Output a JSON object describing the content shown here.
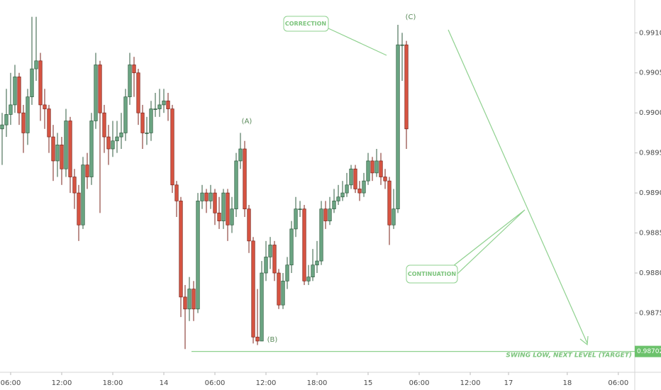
{
  "chart_data": {
    "type": "candlestick",
    "up_color": "#6ba583",
    "down_color": "#d75442",
    "xlim": [
      -1.25,
      73.33
    ],
    "ylim": [
      0.98676,
      0.99141
    ],
    "yticks": [
      {
        "value": 0.991,
        "label": "0.99100"
      },
      {
        "value": 0.9905,
        "label": "0.99050"
      },
      {
        "value": 0.99,
        "label": "0.99000"
      },
      {
        "value": 0.9895,
        "label": "0.98950"
      },
      {
        "value": 0.989,
        "label": "0.98900"
      },
      {
        "value": 0.9885,
        "label": "0.98850"
      },
      {
        "value": 0.988,
        "label": "0.98800"
      },
      {
        "value": 0.9875,
        "label": "0.98750"
      }
    ],
    "xticks": [
      {
        "value": 0,
        "label": "06:00"
      },
      {
        "value": 6,
        "label": "12:00"
      },
      {
        "value": 12,
        "label": "18:00"
      },
      {
        "value": 18,
        "label": "14"
      },
      {
        "value": 24,
        "label": "06:00"
      },
      {
        "value": 30,
        "label": "12:00"
      },
      {
        "value": 36,
        "label": "18:00"
      },
      {
        "value": 42,
        "label": "15"
      },
      {
        "value": 48,
        "label": "06:00"
      },
      {
        "value": 54,
        "label": "12:00"
      },
      {
        "value": 58.5,
        "label": "17"
      },
      {
        "value": 65.4,
        "label": "18"
      },
      {
        "value": 71.4,
        "label": "06:00"
      }
    ],
    "x": [
      -1,
      -0.5,
      0,
      0.5,
      1,
      1.5,
      2,
      2.5,
      3,
      3.5,
      4,
      4.5,
      5,
      5.5,
      6,
      6.5,
      7,
      7.5,
      8,
      8.5,
      9,
      9.5,
      10,
      10.5,
      11,
      11.5,
      12,
      12.5,
      13,
      13.5,
      14,
      14.5,
      15,
      15.5,
      16,
      16.5,
      17,
      17.5,
      18,
      18.5,
      19,
      19.5,
      20,
      20.5,
      21,
      21.5,
      22,
      22.5,
      23,
      23.5,
      24,
      24.5,
      25,
      25.5,
      26,
      26.5,
      27,
      27.5,
      28,
      28.5,
      29,
      29.5,
      30,
      30.5,
      31,
      31.5,
      32,
      32.5,
      33,
      33.5,
      34,
      34.5,
      35,
      35.5,
      36,
      36.5,
      37,
      37.5,
      38,
      38.5,
      39,
      39.5,
      40,
      40.5,
      41,
      41.5,
      42,
      42.5,
      43,
      43.5,
      44,
      44.5,
      45,
      45.5,
      46,
      46.5
    ],
    "open": [
      0.9898,
      0.98985,
      0.98998,
      0.9901,
      0.99045,
      0.99,
      0.98975,
      0.9902,
      0.99055,
      0.99065,
      0.9901,
      0.99005,
      0.9897,
      0.9894,
      0.9896,
      0.9893,
      0.9899,
      0.9892,
      0.989,
      0.9886,
      0.98935,
      0.9892,
      0.9899,
      0.9906,
      0.99,
      0.9897,
      0.98955,
      0.98965,
      0.9897,
      0.98975,
      0.9902,
      0.9906,
      0.9905,
      0.99,
      0.98975,
      0.98975,
      0.99005,
      0.99005,
      0.9901,
      0.99015,
      0.99005,
      0.9891,
      0.9889,
      0.9877,
      0.98755,
      0.9878,
      0.98755,
      0.9889,
      0.989,
      0.9889,
      0.989,
      0.98875,
      0.98865,
      0.989,
      0.9886,
      0.9888,
      0.9894,
      0.98955,
      0.9888,
      0.9884,
      0.9872,
      0.98715,
      0.988,
      0.9882,
      0.98835,
      0.988,
      0.9876,
      0.9879,
      0.9881,
      0.98855,
      0.9888,
      0.9888,
      0.9879,
      0.98795,
      0.9881,
      0.98815,
      0.9888,
      0.98865,
      0.9888,
      0.9889,
      0.98895,
      0.989,
      0.9891,
      0.9893,
      0.98905,
      0.989,
      0.98915,
      0.9894,
      0.98925,
      0.9894,
      0.9892,
      0.98915,
      0.9886,
      0.9888,
      0.99085,
      0.99085
    ],
    "high": [
      0.99,
      0.9903,
      0.9905,
      0.9906,
      0.9905,
      0.9901,
      0.9903,
      0.9912,
      0.9912,
      0.99075,
      0.9903,
      0.9901,
      0.98985,
      0.98975,
      0.9897,
      0.99005,
      0.98995,
      0.9893,
      0.9891,
      0.98945,
      0.9895,
      0.99,
      0.99075,
      0.99065,
      0.9901,
      0.98985,
      0.9899,
      0.9899,
      0.99,
      0.9903,
      0.99075,
      0.9907,
      0.99055,
      0.9901,
      0.98995,
      0.99015,
      0.99025,
      0.9903,
      0.9903,
      0.99025,
      0.9901,
      0.98915,
      0.98895,
      0.98785,
      0.98795,
      0.9879,
      0.989,
      0.9891,
      0.98905,
      0.9891,
      0.98905,
      0.98895,
      0.98905,
      0.98905,
      0.98895,
      0.9895,
      0.98975,
      0.98965,
      0.98885,
      0.98845,
      0.9878,
      0.98815,
      0.9884,
      0.98845,
      0.9884,
      0.98805,
      0.988,
      0.9882,
      0.98865,
      0.98895,
      0.9889,
      0.98885,
      0.9881,
      0.9883,
      0.9884,
      0.9889,
      0.9889,
      0.98895,
      0.98905,
      0.9891,
      0.98915,
      0.98925,
      0.98935,
      0.98935,
      0.98915,
      0.98925,
      0.9895,
      0.98945,
      0.98955,
      0.9895,
      0.9893,
      0.9892,
      0.98905,
      0.9911,
      0.991,
      0.9909
    ],
    "low": [
      0.98935,
      0.9897,
      0.98985,
      0.99,
      0.98985,
      0.9895,
      0.9896,
      0.9901,
      0.9904,
      0.9899,
      0.9898,
      0.9895,
      0.98915,
      0.9892,
      0.9891,
      0.9892,
      0.989,
      0.9888,
      0.9884,
      0.98855,
      0.98905,
      0.9891,
      0.9898,
      0.98875,
      0.9895,
      0.98935,
      0.98945,
      0.9895,
      0.98955,
      0.98965,
      0.9901,
      0.9902,
      0.98985,
      0.98955,
      0.9896,
      0.98965,
      0.98995,
      0.98995,
      0.99,
      0.9899,
      0.989,
      0.9887,
      0.98745,
      0.98705,
      0.9874,
      0.9874,
      0.9875,
      0.9888,
      0.98875,
      0.9888,
      0.9886,
      0.98855,
      0.98855,
      0.9884,
      0.9885,
      0.9887,
      0.9893,
      0.9887,
      0.98825,
      0.98712,
      0.9871,
      0.98715,
      0.9879,
      0.98805,
      0.9879,
      0.98755,
      0.98755,
      0.9878,
      0.988,
      0.98845,
      0.9887,
      0.98785,
      0.98785,
      0.9879,
      0.988,
      0.9881,
      0.98855,
      0.9886,
      0.98875,
      0.98885,
      0.9889,
      0.98895,
      0.98905,
      0.989,
      0.9889,
      0.98895,
      0.9891,
      0.98915,
      0.9892,
      0.9891,
      0.98905,
      0.98835,
      0.98855,
      0.98875,
      0.9904,
      0.98955
    ],
    "close": [
      0.98985,
      0.98998,
      0.9901,
      0.99045,
      0.99,
      0.98975,
      0.9902,
      0.99055,
      0.99065,
      0.9901,
      0.99005,
      0.9897,
      0.9894,
      0.9896,
      0.9893,
      0.9899,
      0.9892,
      0.989,
      0.9886,
      0.98935,
      0.9892,
      0.9899,
      0.9906,
      0.99,
      0.9897,
      0.98955,
      0.98965,
      0.9897,
      0.98975,
      0.9902,
      0.9906,
      0.9905,
      0.99,
      0.98975,
      0.98975,
      0.99005,
      0.99005,
      0.9901,
      0.99015,
      0.99005,
      0.9891,
      0.9889,
      0.9877,
      0.98755,
      0.9878,
      0.98755,
      0.9889,
      0.989,
      0.9889,
      0.989,
      0.98875,
      0.98865,
      0.989,
      0.9886,
      0.9888,
      0.9894,
      0.98955,
      0.9888,
      0.9884,
      0.9872,
      0.98715,
      0.988,
      0.9882,
      0.98835,
      0.988,
      0.9876,
      0.9879,
      0.9881,
      0.98855,
      0.9888,
      0.9888,
      0.9879,
      0.98795,
      0.9881,
      0.98815,
      0.9888,
      0.98865,
      0.9888,
      0.9889,
      0.98895,
      0.989,
      0.9891,
      0.9893,
      0.98905,
      0.989,
      0.98915,
      0.9894,
      0.98925,
      0.9894,
      0.9892,
      0.98915,
      0.9886,
      0.9888,
      0.99085,
      0.99085,
      0.9898
    ],
    "swing_low": 0.98702,
    "annotations": {
      "correction": "CORRECTION",
      "continuation": "CONTINUATION",
      "target": "SWING LOW, NEXT LEVEL (TARGET)",
      "wave_a": "(A)",
      "wave_b": "(B)",
      "wave_c": "(C)"
    }
  }
}
